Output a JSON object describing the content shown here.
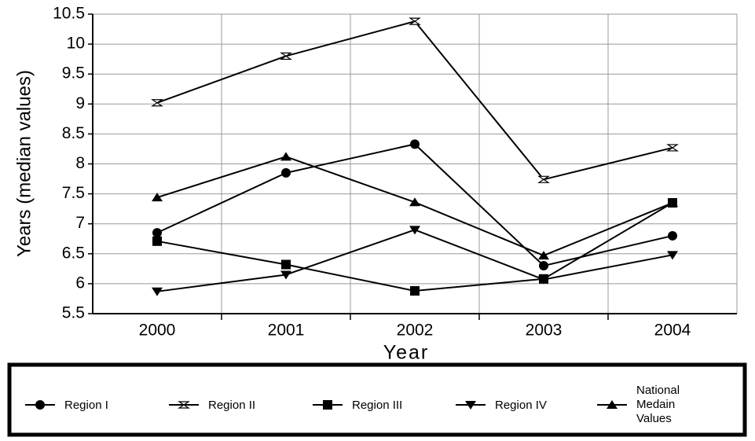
{
  "chart_data": {
    "type": "line",
    "x_label": "Year",
    "y_label": "Years (median values)",
    "categories": [
      "2000",
      "2001",
      "2002",
      "2003",
      "2004"
    ],
    "ylim": [
      5.5,
      10.5
    ],
    "yticks": [
      5.5,
      6,
      6.5,
      7,
      7.5,
      8,
      8.5,
      9,
      9.5,
      10,
      10.5
    ],
    "grid": true,
    "series": [
      {
        "name": "Region I",
        "color": "#000000",
        "marker": "circle",
        "values": [
          6.85,
          7.85,
          8.33,
          6.3,
          6.8
        ]
      },
      {
        "name": "Region II",
        "color": "#000000",
        "marker": "hourglass",
        "values": [
          9.02,
          9.8,
          10.38,
          7.74,
          8.27
        ]
      },
      {
        "name": "Region III",
        "color": "#000000",
        "marker": "square",
        "values": [
          6.71,
          6.32,
          5.88,
          6.08,
          7.35
        ]
      },
      {
        "name": "Region IV",
        "color": "#000000",
        "marker": "triangle-down",
        "values": [
          5.87,
          6.15,
          6.9,
          6.07,
          6.48
        ]
      },
      {
        "name": "National Medain Values",
        "color": "#000000",
        "marker": "triangle-up",
        "values": [
          7.44,
          8.12,
          7.36,
          6.47,
          7.35
        ]
      }
    ]
  }
}
